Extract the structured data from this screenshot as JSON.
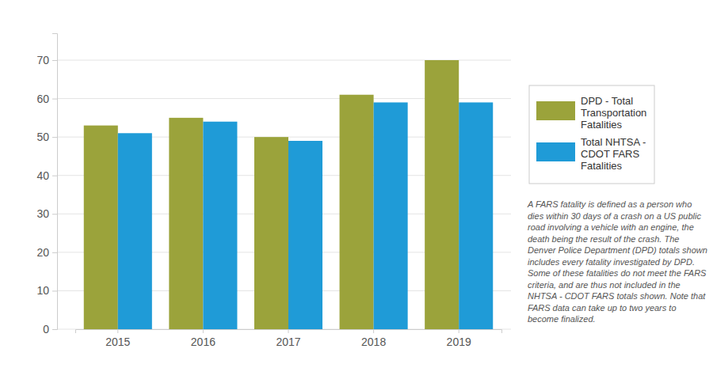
{
  "chart_data": {
    "type": "bar",
    "categories": [
      "2015",
      "2016",
      "2017",
      "2018",
      "2019"
    ],
    "series": [
      {
        "name": "DPD - Total Transportation Fatalities",
        "color": "#9ba33b",
        "values": [
          53,
          55,
          50,
          61,
          70
        ]
      },
      {
        "name": "Total NHTSA - CDOT FARS Fatalities",
        "color": "#1f9bd7",
        "values": [
          51,
          54,
          49,
          59,
          59
        ]
      }
    ],
    "ylim": [
      0,
      77
    ],
    "yticks": [
      0,
      10,
      20,
      30,
      40,
      50,
      60,
      70
    ],
    "grid": true,
    "legend": "right",
    "annotations": [
      "A FARS fatality is defined as a person who dies within 30 days of a crash on a US public road involving a vehicle with an engine, the death being the result of the crash. The Denver Police Department (DPD) totals shown includes every fatality investigated by DPD. Some of these fatalities do not meet the FARS criteria, and are thus not included in the NHTSA - CDOT FARS totals shown. Note that FARS data can take up to two years to become finalized."
    ]
  }
}
